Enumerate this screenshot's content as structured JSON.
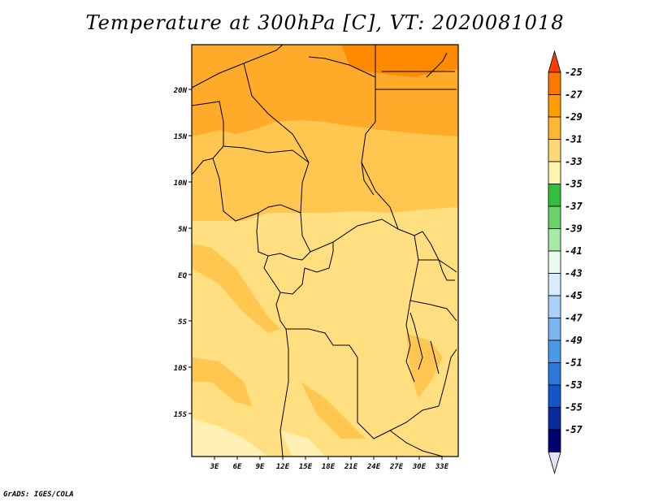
{
  "title": "Temperature at 300hPa [C], VT: 2020081018",
  "credit": "GrADS: IGES/COLA",
  "map": {
    "lat_labels": [
      "20N",
      "15N",
      "10N",
      "5N",
      "EQ",
      "5S",
      "10S",
      "15S"
    ],
    "lon_labels": [
      "3E",
      "6E",
      "9E",
      "12E",
      "15E",
      "18E",
      "21E",
      "24E",
      "27E",
      "30E",
      "33E"
    ]
  },
  "colorbar": {
    "levels": [
      "-25",
      "-27",
      "-29",
      "-31",
      "-33",
      "-35",
      "-37",
      "-39",
      "-41",
      "-43",
      "-45",
      "-47",
      "-49",
      "-51",
      "-53",
      "-55",
      "-57"
    ],
    "colors": [
      "#ff3c00",
      "#ff7800",
      "#ff9e00",
      "#ffb830",
      "#ffd878",
      "#fff5b0",
      "#32c03c",
      "#6ad46a",
      "#a6eaa6",
      "#e8fbee",
      "#d6ecff",
      "#a8d2fa",
      "#7ab6f0",
      "#4a98e8",
      "#2a78dc",
      "#1456c8",
      "#0a2aa0",
      "#000070",
      "#e4e2f8"
    ]
  },
  "palette": {
    "c25": "#ff6a00",
    "c27": "#ff9a00",
    "c29": "#ffb430",
    "c31": "#ffd370",
    "c33": "#ffe288",
    "c35": "#fff2b8",
    "border": "#000000"
  }
}
